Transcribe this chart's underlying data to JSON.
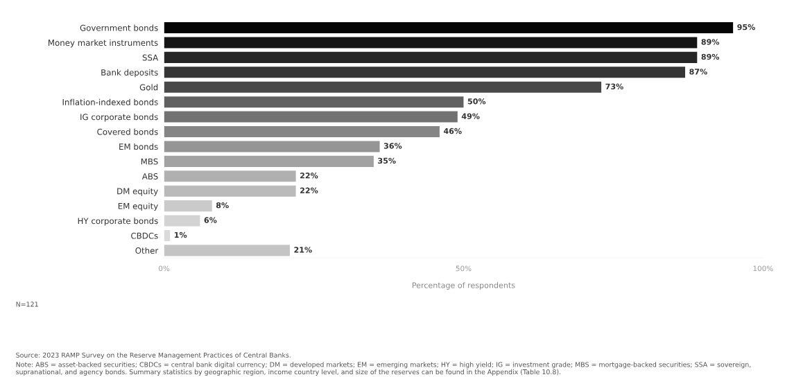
{
  "chart_data": {
    "type": "bar",
    "orientation": "horizontal",
    "categories": [
      "Government bonds",
      "Money market instruments",
      "SSA",
      "Bank deposits",
      "Gold",
      "Inflation-indexed bonds",
      "IG corporate bonds",
      "Covered bonds",
      "EM bonds",
      "MBS",
      "ABS",
      "DM equity",
      "EM equity",
      "HY corporate bonds",
      "CBDCs",
      "Other"
    ],
    "values": [
      95,
      89,
      89,
      87,
      73,
      50,
      49,
      46,
      36,
      35,
      22,
      22,
      8,
      6,
      1,
      21
    ],
    "colors": [
      "#050505",
      "#151515",
      "#262626",
      "#363636",
      "#484848",
      "#616161",
      "#727272",
      "#858585",
      "#959595",
      "#a2a2a2",
      "#b0b0b0",
      "#bababa",
      "#cacaca",
      "#d3d3d3",
      "#dadada",
      "#c4c4c4"
    ],
    "value_labels": [
      "95%",
      "89%",
      "89%",
      "87%",
      "73%",
      "50%",
      "49%",
      "46%",
      "36%",
      "35%",
      "22%",
      "22%",
      "8%",
      "6%",
      "1%",
      "21%"
    ],
    "xlim": [
      0,
      100
    ],
    "xticks": [
      {
        "value": 0,
        "label": "0%"
      },
      {
        "value": 50,
        "label": "50%"
      },
      {
        "value": 100,
        "label": "100%"
      }
    ],
    "xlabel": "Percentage of respondents",
    "grid": false,
    "legend": false,
    "annotations": [
      "N=121",
      "Source: 2023 RAMP Survey on the Reserve Management Practices of Central Banks.",
      "Note: ABS = asset-backed securities; CBDCs = central bank digital currency; DM = developed markets; EM = emerging markets; HY = high yield; IG = investment grade; MBS = mortgage-backed securities; SSA = sovereign, supranational, and agency bonds. Summary statistics by geographic region, income country level, and size of the reserves can be found in the Appendix (Table 10.8)."
    ]
  }
}
